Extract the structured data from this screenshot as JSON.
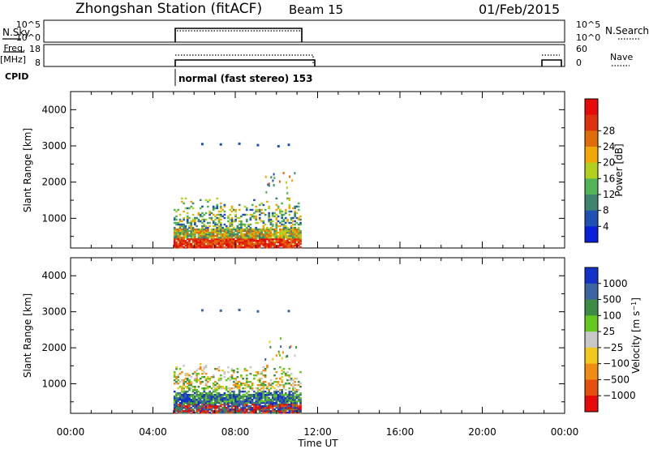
{
  "header": {
    "station": "Zhongshan Station (fitACF)",
    "beam": "Beam 15",
    "date": "01/Feb/2015"
  },
  "panels": {
    "nsky": {
      "left_label": "N.Sky",
      "left_ticks": [
        "10^5",
        "10^0"
      ],
      "right_ticks": [
        "10^5",
        "10^0"
      ],
      "right_label": "N.Search"
    },
    "freq": {
      "left_label_1": "Freq.",
      "left_label_2": "[MHz]",
      "left_ticks": [
        "18",
        "8"
      ],
      "right_ticks": [
        "60",
        "0"
      ],
      "right_label": "Nave"
    },
    "cpid": {
      "label": "CPID",
      "mode_text": "normal (fast stereo) 153"
    }
  },
  "chart_data": [
    {
      "type": "heatmap",
      "title": "",
      "xlabel": "",
      "ylabel": "Slant Range [km]",
      "xlim": [
        0,
        24
      ],
      "ylim": [
        180,
        4500
      ],
      "x_ticks": [
        "00:00",
        "04:00",
        "08:00",
        "12:00",
        "16:00",
        "20:00",
        "00:00"
      ],
      "y_ticks": [
        "1000",
        "2000",
        "3000",
        "4000"
      ],
      "colorbar": {
        "label": "Power [dB]",
        "ticks": [
          "4",
          "8",
          "12",
          "16",
          "20",
          "24",
          "28"
        ],
        "colors": [
          "#0a1fd8",
          "#2050b4",
          "#3f8470",
          "#52b456",
          "#b4d01e",
          "#f0a808",
          "#e06c0a",
          "#dc3210",
          "#e60a0a"
        ]
      },
      "data_region": {
        "x_start": 5.0,
        "x_end": 11.2,
        "scatter_max_km": 1600,
        "dense_max_km": 700
      },
      "echo_points_km": [
        [
          6.4,
          3050
        ],
        [
          7.3,
          3040
        ],
        [
          8.2,
          3060
        ],
        [
          9.1,
          3020
        ],
        [
          10.1,
          2990
        ],
        [
          10.6,
          3030
        ]
      ]
    },
    {
      "type": "heatmap",
      "title": "",
      "xlabel": "Time UT",
      "ylabel": "Slant Range [km]",
      "xlim": [
        0,
        24
      ],
      "ylim": [
        180,
        4500
      ],
      "x_ticks": [
        "00:00",
        "04:00",
        "08:00",
        "12:00",
        "16:00",
        "20:00",
        "00:00"
      ],
      "y_ticks": [
        "1000",
        "2000",
        "3000",
        "4000"
      ],
      "colorbar": {
        "label": "Velocity [m s^-1]",
        "ticks": [
          "1000",
          "500",
          "100",
          "25",
          "−25",
          "−100",
          "−500",
          "−1000"
        ],
        "colors": [
          "#1432c8",
          "#3c64a0",
          "#3c8c46",
          "#64c81e",
          "#c8c8c8",
          "#f0c81e",
          "#f08c14",
          "#e6500f",
          "#e60a0a"
        ]
      },
      "data_region": {
        "x_start": 5.0,
        "x_end": 11.2,
        "scatter_max_km": 1600,
        "dense_max_km": 700
      },
      "echo_points_km": [
        [
          6.4,
          3040
        ],
        [
          7.3,
          3030
        ],
        [
          8.2,
          3050
        ],
        [
          9.1,
          3010
        ],
        [
          10.6,
          3020
        ]
      ]
    }
  ],
  "colors": {
    "frame": "#000000",
    "ground_scatter": "#c8c8c8"
  }
}
